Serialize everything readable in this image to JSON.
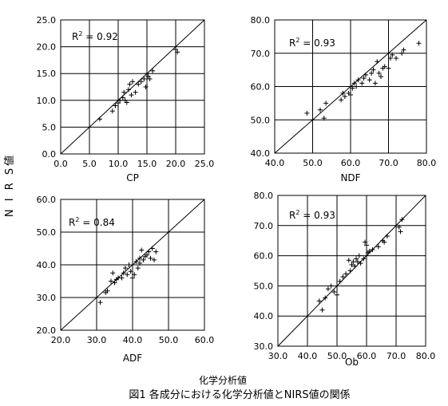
{
  "figure": {
    "ylabel": "N I R S値",
    "xlabel": "化学分析値",
    "caption": "図1  各成分における化学分析値とNIRS値の関係"
  },
  "chart_data": [
    {
      "type": "scatter",
      "xlabel": "CP",
      "xlim": [
        0,
        25
      ],
      "ylim": [
        0,
        25
      ],
      "xticks": [
        "0.0",
        "5.0",
        "10.0",
        "15.0",
        "20.0",
        "25.0"
      ],
      "yticks": [
        "0.0",
        "5.0",
        "10.0",
        "15.0",
        "20.0",
        "25.0"
      ],
      "r2_prefix": "R",
      "r2_exp": "2",
      "r2_value": " = 0.92",
      "points": [
        [
          6.8,
          6.5
        ],
        [
          9.0,
          8.0
        ],
        [
          9.5,
          9.0
        ],
        [
          10.0,
          9.5
        ],
        [
          10.3,
          10.0
        ],
        [
          10.8,
          10.5
        ],
        [
          11.0,
          11.5
        ],
        [
          11.2,
          10.0
        ],
        [
          11.5,
          9.6
        ],
        [
          11.8,
          12.0
        ],
        [
          12.0,
          13.0
        ],
        [
          12.3,
          11.0
        ],
        [
          12.5,
          13.5
        ],
        [
          13.0,
          11.5
        ],
        [
          13.5,
          13.0
        ],
        [
          14.0,
          13.5
        ],
        [
          14.5,
          14.0
        ],
        [
          14.8,
          12.5
        ],
        [
          15.0,
          15.0
        ],
        [
          15.2,
          14.5
        ],
        [
          15.5,
          14.0
        ],
        [
          16.0,
          15.5
        ],
        [
          20.0,
          19.5
        ],
        [
          20.3,
          19.0
        ]
      ]
    },
    {
      "type": "scatter",
      "xlabel": "NDF",
      "xlim": [
        40,
        80
      ],
      "ylim": [
        40,
        80
      ],
      "xticks": [
        "40.0",
        "50.0",
        "60.0",
        "70.0",
        "80.0"
      ],
      "yticks": [
        "40.0",
        "50.0",
        "60.0",
        "70.0",
        "80.0"
      ],
      "r2_prefix": "R",
      "r2_exp": "2",
      "r2_value": " = 0.93",
      "points": [
        [
          48.5,
          52.0
        ],
        [
          50.0,
          50.0
        ],
        [
          52.0,
          53.0
        ],
        [
          53.0,
          50.5
        ],
        [
          53.5,
          55.0
        ],
        [
          57.5,
          56.0
        ],
        [
          58.0,
          58.0
        ],
        [
          58.5,
          57.0
        ],
        [
          59.5,
          58.0
        ],
        [
          60.0,
          57.5
        ],
        [
          60.5,
          59.5
        ],
        [
          61.0,
          61.0
        ],
        [
          61.5,
          60.0
        ],
        [
          62.0,
          62.0
        ],
        [
          63.0,
          61.0
        ],
        [
          63.5,
          62.5
        ],
        [
          64.0,
          63.5
        ],
        [
          65.0,
          62.0
        ],
        [
          65.5,
          64.0
        ],
        [
          66.0,
          65.0
        ],
        [
          66.5,
          61.0
        ],
        [
          67.0,
          67.5
        ],
        [
          67.5,
          64.0
        ],
        [
          68.0,
          63.0
        ],
        [
          68.5,
          65.5
        ],
        [
          69.0,
          66.0
        ],
        [
          70.0,
          65.5
        ],
        [
          70.5,
          68.5
        ],
        [
          71.0,
          69.5
        ],
        [
          72.0,
          68.5
        ],
        [
          73.5,
          70.0
        ],
        [
          74.0,
          71.0
        ],
        [
          78.0,
          73.0
        ]
      ]
    },
    {
      "type": "scatter",
      "xlabel": "ADF",
      "xlim": [
        20,
        60
      ],
      "ylim": [
        20,
        60
      ],
      "xticks": [
        "20.0",
        "30.0",
        "40.0",
        "50.0",
        "60.0"
      ],
      "yticks": [
        "20.0",
        "30.0",
        "40.0",
        "50.0",
        "60.0"
      ],
      "r2_prefix": "R",
      "r2_exp": "2",
      "r2_value": " = 0.84",
      "points": [
        [
          31.0,
          28.5
        ],
        [
          32.5,
          31.5
        ],
        [
          33.0,
          32.0
        ],
        [
          34.0,
          35.0
        ],
        [
          34.5,
          37.5
        ],
        [
          35.0,
          34.5
        ],
        [
          35.5,
          35.5
        ],
        [
          36.0,
          36.0
        ],
        [
          37.0,
          36.0
        ],
        [
          37.5,
          37.5
        ],
        [
          38.0,
          39.0
        ],
        [
          38.5,
          37.0
        ],
        [
          39.0,
          40.0
        ],
        [
          39.5,
          38.0
        ],
        [
          40.0,
          36.0
        ],
        [
          40.5,
          37.0
        ],
        [
          41.0,
          41.0
        ],
        [
          41.5,
          39.0
        ],
        [
          42.0,
          40.5
        ],
        [
          42.0,
          42.0
        ],
        [
          42.5,
          44.5
        ],
        [
          43.0,
          41.5
        ],
        [
          43.5,
          42.5
        ],
        [
          44.0,
          43.0
        ],
        [
          44.5,
          44.0
        ],
        [
          45.0,
          42.0
        ],
        [
          45.5,
          45.0
        ],
        [
          46.0,
          41.5
        ],
        [
          46.5,
          44.0
        ]
      ]
    },
    {
      "type": "scatter",
      "xlabel": "Ob",
      "xlim": [
        30,
        80
      ],
      "ylim": [
        30,
        80
      ],
      "xticks": [
        "30.0",
        "40.0",
        "50.0",
        "60.0",
        "70.0",
        "80.0"
      ],
      "yticks": [
        "30.0",
        "40.0",
        "50.0",
        "60.0",
        "70.0",
        "80.0"
      ],
      "r2_prefix": "R",
      "r2_exp": "2",
      "r2_value": " = 0.93",
      "points": [
        [
          44.0,
          45.0
        ],
        [
          45.0,
          42.0
        ],
        [
          46.0,
          46.0
        ],
        [
          47.0,
          49.0
        ],
        [
          48.0,
          50.0
        ],
        [
          49.0,
          48.0
        ],
        [
          50.0,
          47.0
        ],
        [
          51.0,
          51.5
        ],
        [
          52.0,
          53.0
        ],
        [
          53.0,
          54.0
        ],
        [
          54.0,
          58.5
        ],
        [
          54.5,
          55.0
        ],
        [
          55.0,
          57.0
        ],
        [
          55.5,
          58.0
        ],
        [
          56.0,
          56.5
        ],
        [
          56.5,
          59.0
        ],
        [
          57.0,
          58.0
        ],
        [
          57.5,
          60.0
        ],
        [
          58.0,
          57.5
        ],
        [
          59.0,
          59.0
        ],
        [
          59.5,
          64.5
        ],
        [
          60.0,
          63.5
        ],
        [
          60.5,
          61.0
        ],
        [
          61.0,
          61.5
        ],
        [
          62.0,
          62.0
        ],
        [
          64.0,
          63.0
        ],
        [
          65.5,
          65.0
        ],
        [
          66.0,
          64.5
        ],
        [
          67.0,
          66.5
        ],
        [
          71.0,
          69.5
        ],
        [
          71.5,
          68.0
        ],
        [
          72.0,
          72.0
        ]
      ]
    }
  ]
}
